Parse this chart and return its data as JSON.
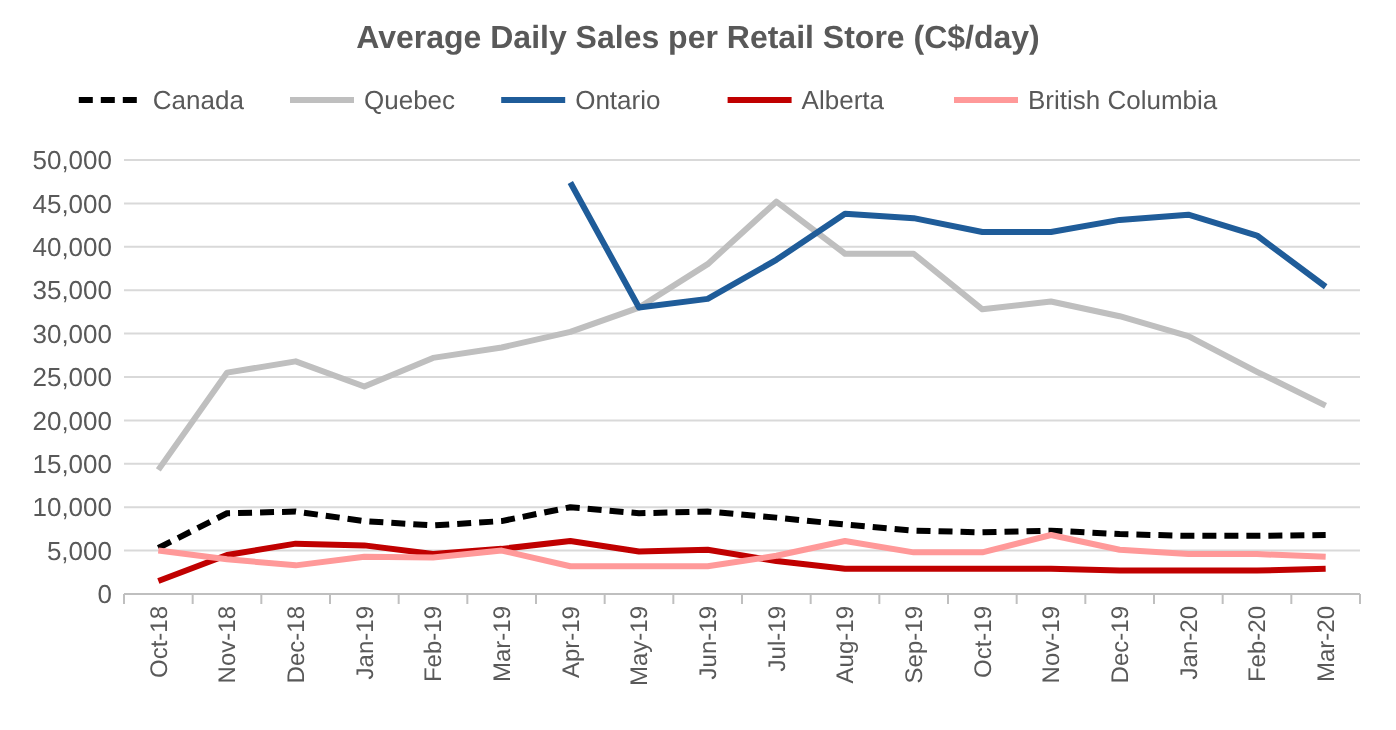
{
  "chart_data": {
    "type": "line",
    "title": "Average Daily Sales per Retail Store (C$/day)",
    "categories": [
      "Oct-18",
      "Nov-18",
      "Dec-18",
      "Jan-19",
      "Feb-19",
      "Mar-19",
      "Apr-19",
      "May-19",
      "Jun-19",
      "Jul-19",
      "Aug-19",
      "Sep-19",
      "Oct-19",
      "Nov-19",
      "Dec-19",
      "Jan-20",
      "Feb-20",
      "Mar-20"
    ],
    "series": [
      {
        "name": "Canada",
        "color": "#000000",
        "line_style": "dashed",
        "values": [
          5300,
          9300,
          9500,
          8400,
          7900,
          8400,
          10000,
          9300,
          9500,
          8800,
          8000,
          7300,
          7100,
          7300,
          6900,
          6700,
          6700,
          6800
        ]
      },
      {
        "name": "Quebec",
        "color": "#bfbfbf",
        "values": [
          14300,
          25500,
          26800,
          23900,
          27200,
          28400,
          30200,
          33000,
          38000,
          45200,
          39200,
          39200,
          32800,
          33700,
          32000,
          29700,
          25600,
          21700
        ]
      },
      {
        "name": "Ontario",
        "color": "#1f5c99",
        "values": [
          null,
          null,
          null,
          null,
          null,
          null,
          47400,
          33000,
          34000,
          38500,
          43800,
          43300,
          41700,
          41700,
          43100,
          43700,
          41300,
          35400
        ]
      },
      {
        "name": "Alberta",
        "color": "#c00000",
        "values": [
          1500,
          4500,
          5800,
          5600,
          4600,
          5200,
          6100,
          4900,
          5100,
          3800,
          2900,
          2900,
          2900,
          2900,
          2700,
          2700,
          2700,
          2900
        ]
      },
      {
        "name": "British Columbia",
        "color": "#ff9999",
        "values": [
          5000,
          4000,
          3300,
          4300,
          4200,
          5000,
          3200,
          3200,
          3200,
          4400,
          6100,
          4800,
          4800,
          6800,
          5100,
          4600,
          4600,
          4300
        ]
      }
    ],
    "ylim": [
      0,
      50000
    ],
    "yticks": [
      {
        "value": 0,
        "label": "0"
      },
      {
        "value": 5000,
        "label": "5,000"
      },
      {
        "value": 10000,
        "label": "10,000"
      },
      {
        "value": 15000,
        "label": "15,000"
      },
      {
        "value": 20000,
        "label": "20,000"
      },
      {
        "value": 25000,
        "label": "25,000"
      },
      {
        "value": 30000,
        "label": "30,000"
      },
      {
        "value": 35000,
        "label": "35,000"
      },
      {
        "value": 40000,
        "label": "40,000"
      },
      {
        "value": 45000,
        "label": "45,000"
      },
      {
        "value": 50000,
        "label": "50,000"
      }
    ],
    "grid": "y",
    "legend": "top",
    "line_style": "solid"
  }
}
